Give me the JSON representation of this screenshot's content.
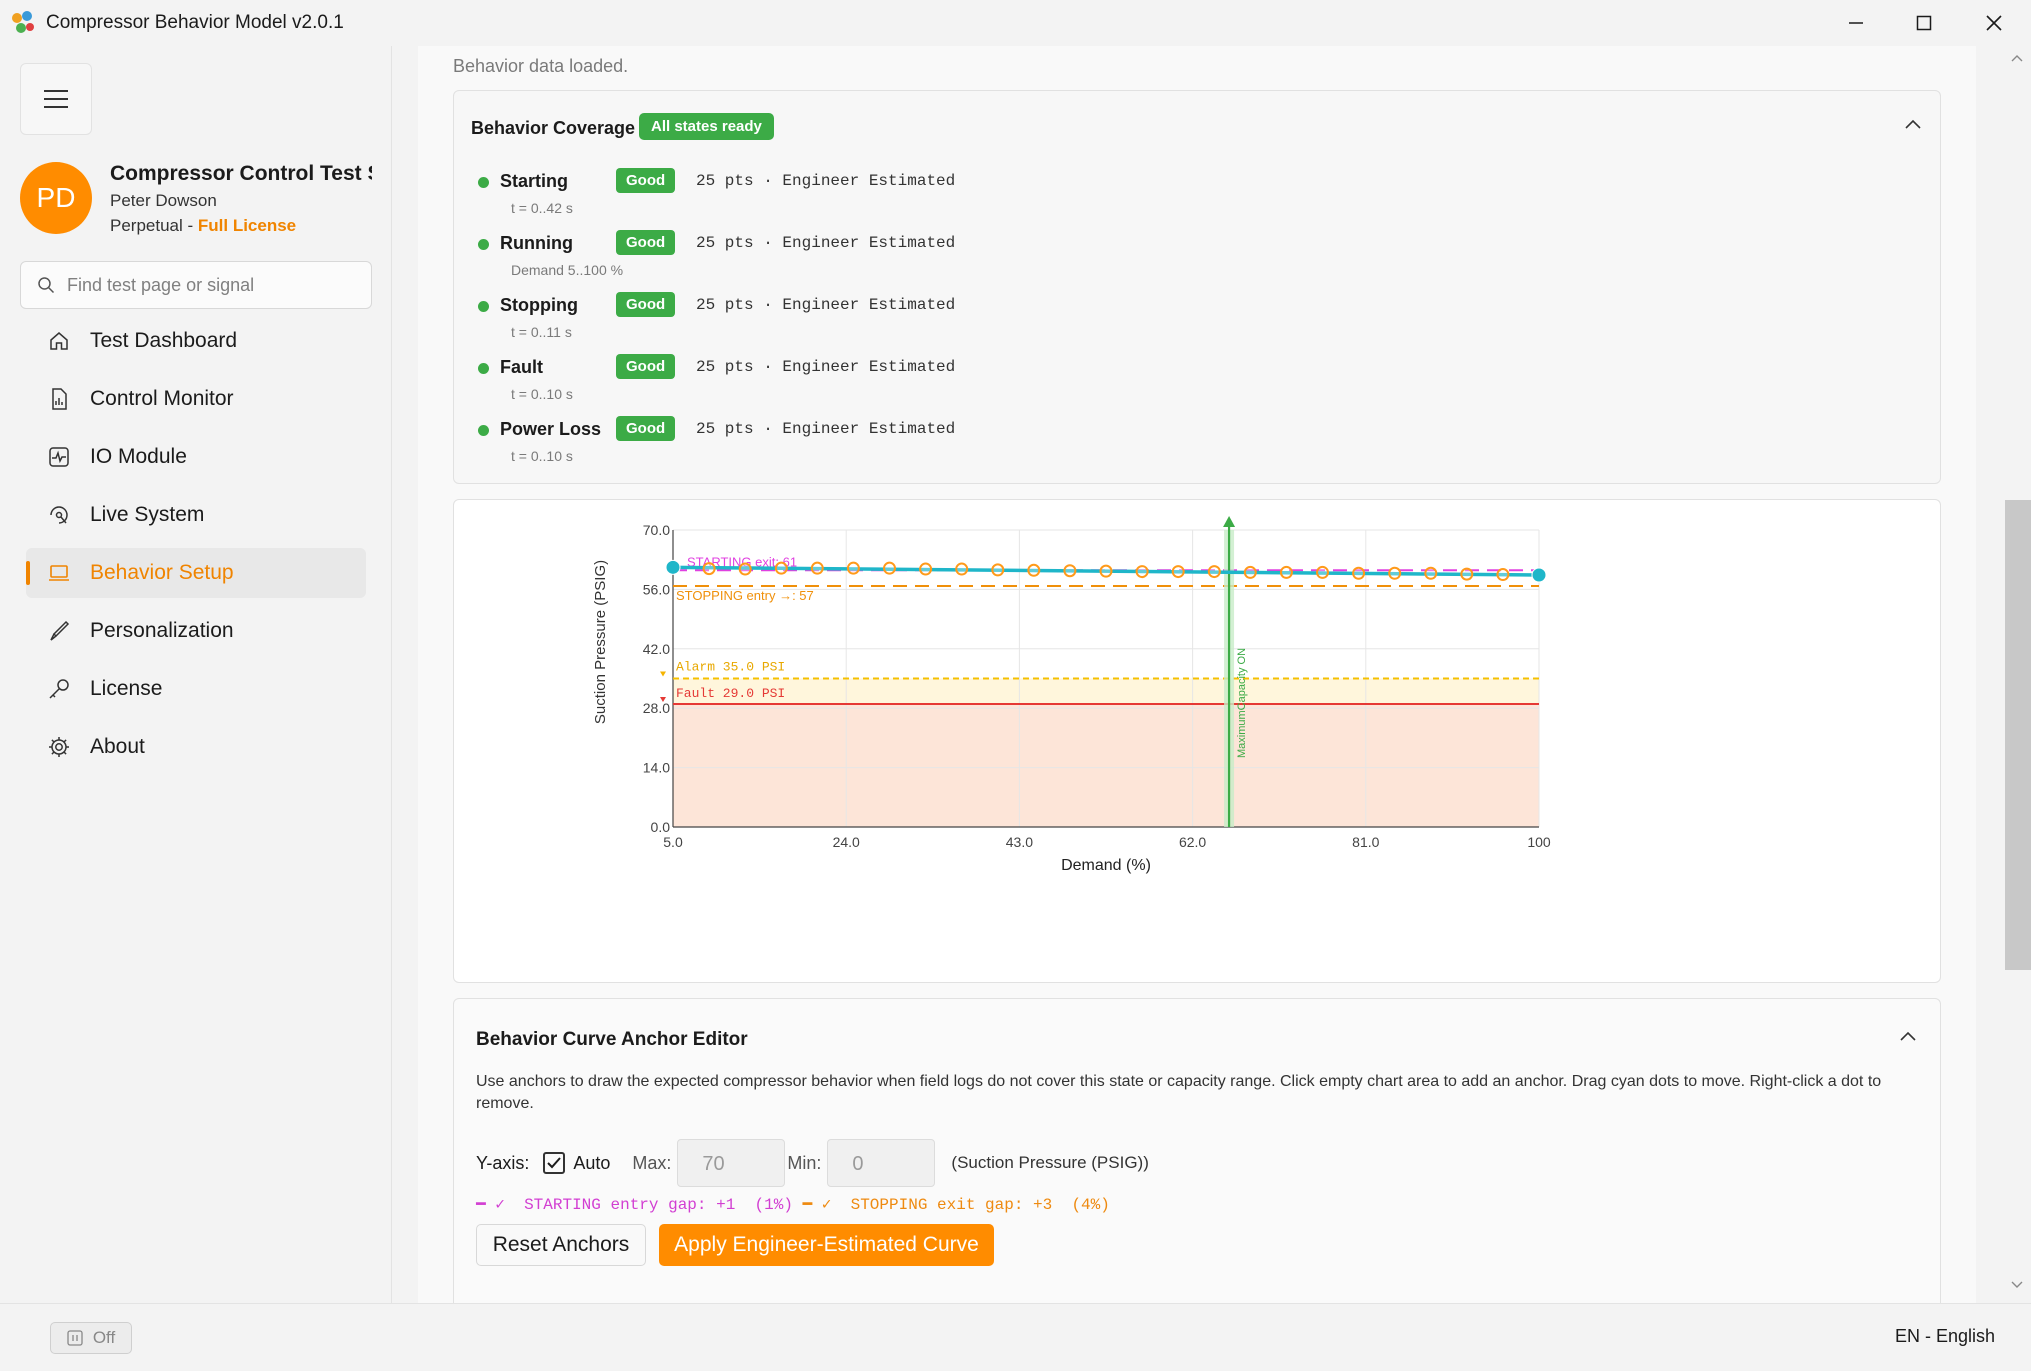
{
  "window": {
    "title": "Compressor Behavior Model v2.0.1",
    "minimize_icon": "minimize-icon",
    "maximize_icon": "maximize-icon",
    "close_icon": "close-icon"
  },
  "sidebar": {
    "profile": {
      "initials": "PD",
      "app_name": "Compressor Control Test Simulator",
      "user": "Peter Dowson",
      "license_type": "Perpetual - ",
      "license_level": "Full License"
    },
    "search_placeholder": "Find test page or signal",
    "items": [
      {
        "label": "Test Dashboard",
        "icon": "home-icon",
        "active": false
      },
      {
        "label": "Control Monitor",
        "icon": "document-chart-icon",
        "active": false
      },
      {
        "label": "IO Module",
        "icon": "pulse-icon",
        "active": false
      },
      {
        "label": "Live System",
        "icon": "live-icon",
        "active": false
      },
      {
        "label": "Behavior Setup",
        "icon": "laptop-icon",
        "active": true
      },
      {
        "label": "Personalization",
        "icon": "brush-icon",
        "active": false
      },
      {
        "label": "License",
        "icon": "key-icon",
        "active": false
      },
      {
        "label": "About",
        "icon": "gear-icon",
        "active": false
      }
    ]
  },
  "main": {
    "status_text": "Behavior data loaded.",
    "coverage": {
      "title": "Behavior Coverage",
      "badge": "All states ready",
      "states": [
        {
          "name": "Starting",
          "sub": "t = 0..42 s",
          "quality": "Good",
          "info": "25 pts · Engineer Estimated"
        },
        {
          "name": "Running",
          "sub": "Demand 5..100 %",
          "quality": "Good",
          "info": "25 pts · Engineer Estimated"
        },
        {
          "name": "Stopping",
          "sub": "t = 0..11 s",
          "quality": "Good",
          "info": "25 pts · Engineer Estimated"
        },
        {
          "name": "Fault",
          "sub": "t = 0..10 s",
          "quality": "Good",
          "info": "25 pts · Engineer Estimated"
        },
        {
          "name": "Power Loss",
          "sub": "t = 0..10 s",
          "quality": "Good",
          "info": "25 pts · Engineer Estimated"
        }
      ]
    },
    "editor": {
      "title": "Behavior Curve Anchor Editor",
      "description": "Use anchors to draw the expected compressor behavior when field logs do not cover this state or capacity range. Click empty chart area to add an anchor. Drag cyan dots to move. Right-click a dot to remove.",
      "yaxis_label": "Y-axis:",
      "auto_label": "Auto",
      "auto_checked": true,
      "max_label": "Max:",
      "max_value": "70",
      "min_label": "Min:",
      "min_value": "0",
      "unit_label": "(Suction Pressure (PSIG))",
      "gap_starting": "━ ✓  STARTING entry gap: +1  (1%)",
      "gap_stopping": "━ ✓  STOPPING exit gap: +3  (4%)",
      "reset_label": "Reset Anchors",
      "apply_label": "Apply Engineer-Estimated Curve"
    }
  },
  "chart_data": {
    "type": "line",
    "title": "",
    "xlabel": "Demand (%)",
    "ylabel": "Suction Pressure (PSIG)",
    "xlim": [
      5,
      100
    ],
    "ylim": [
      0,
      70
    ],
    "x_ticks": [
      "5.0",
      "24.0",
      "43.0",
      "62.0",
      "81.0",
      "100"
    ],
    "y_ticks": [
      "0.0",
      "14.0",
      "28.0",
      "42.0",
      "56.0",
      "70.0"
    ],
    "grid": true,
    "series": [
      {
        "style": "line",
        "color": "#1fb6c9",
        "x": [
          5,
          100
        ],
        "y": [
          61.2,
          59.4
        ]
      },
      {
        "style": "markers",
        "color": "#ff9a1a",
        "x": [
          8.96,
          12.92,
          16.88,
          20.83,
          24.79,
          28.75,
          32.71,
          36.67,
          40.63,
          44.58,
          48.54,
          52.5,
          56.46,
          60.42,
          64.38,
          68.33,
          72.29,
          76.25,
          80.21,
          84.17,
          88.13,
          92.08,
          96.04
        ],
        "y": [
          60.9,
          60.8,
          61.0,
          61.0,
          61.0,
          61.0,
          60.8,
          60.8,
          60.6,
          60.5,
          60.4,
          60.3,
          60.2,
          60.2,
          60.2,
          60.0,
          60.0,
          60.0,
          59.8,
          59.8,
          59.8,
          59.6,
          59.5
        ]
      }
    ],
    "anchors": {
      "color": "#1fb6c9",
      "x": [
        5,
        100
      ],
      "y": [
        61.2,
        59.4
      ]
    },
    "reference_lines": [
      {
        "label": "STARTING exit: 61",
        "value": 60.5,
        "color": "#e040e0",
        "style": "dashed"
      },
      {
        "label": "STOPPING entry →: 57",
        "value": 56.8,
        "color": "#f0900a",
        "style": "dashed"
      },
      {
        "label": "Alarm  35.0 PSI",
        "value": 35.0,
        "color": "#f5c000",
        "style": "dashed"
      },
      {
        "label": "Fault  29.0 PSI",
        "value": 29.0,
        "color": "#e53935",
        "style": "solid"
      }
    ],
    "vertical_marker": {
      "label": "MaximumCapacity ON",
      "x": 66.0,
      "color": "#3cab46"
    }
  },
  "statusbar": {
    "toggle_label": "Off",
    "language": "EN - English"
  }
}
